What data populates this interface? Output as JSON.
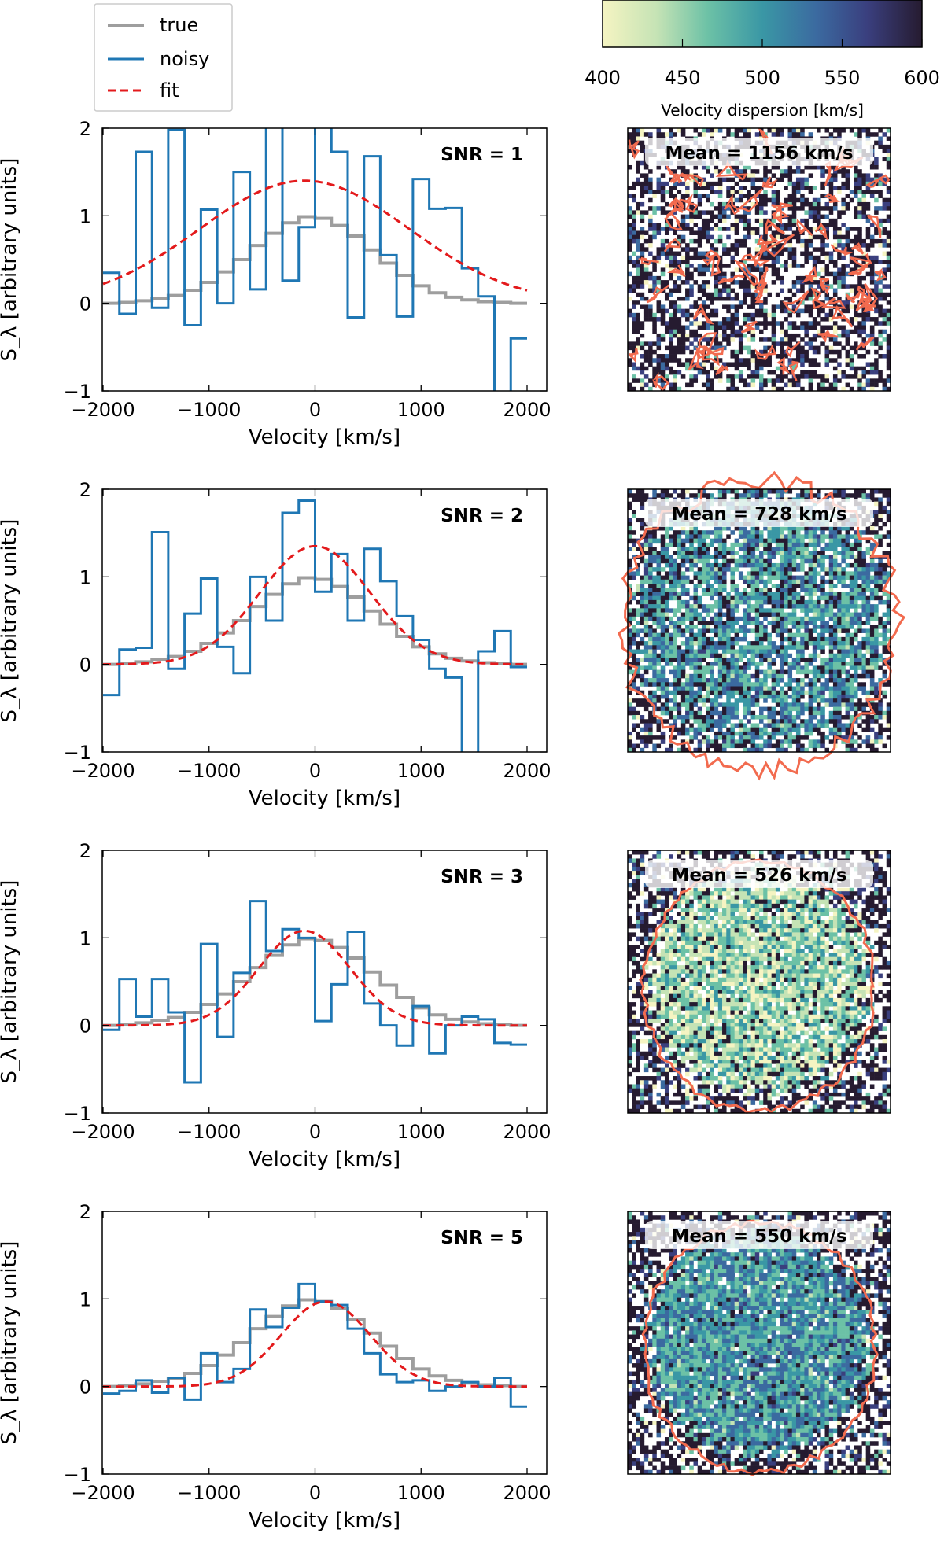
{
  "legend": {
    "entries": [
      {
        "label": "true",
        "color": "#9e9e9e",
        "style": "solid"
      },
      {
        "label": "noisy",
        "color": "#1f77b4",
        "style": "solid"
      },
      {
        "label": "fit",
        "color": "#e31a1c",
        "style": "dashed"
      }
    ]
  },
  "colorbar": {
    "label": "Velocity dispersion [km/s]",
    "ticks": [
      "400",
      "450",
      "500",
      "550",
      "600"
    ],
    "range": [
      400,
      600
    ],
    "colors": [
      "#f5f4c2",
      "#c5e3b5",
      "#6cc1a6",
      "#3a97a5",
      "#3b6aa0",
      "#3a3f7e",
      "#261b30"
    ]
  },
  "chart_data": [
    {
      "type": "line",
      "snr_label": "SNR = 1",
      "xlabel": "Velocity [km/s]",
      "ylabel": "S_λ [arbitrary units]",
      "xlim": [
        -2000,
        2000
      ],
      "ylim": [
        -1,
        2
      ],
      "xticks": [
        "−2000",
        "−1000",
        "0",
        "1000",
        "2000"
      ],
      "yticks": [
        "−1",
        "0",
        "1",
        "2"
      ],
      "bin_edges": [
        -2000,
        -1846,
        -1692,
        -1538,
        -1385,
        -1231,
        -1077,
        -923,
        -769,
        -615,
        -462,
        -308,
        -154,
        0,
        154,
        308,
        462,
        615,
        769,
        923,
        1077,
        1231,
        1385,
        1538,
        1692,
        1846,
        2000
      ],
      "series": [
        {
          "name": "true",
          "values": [
            0.0,
            0.01,
            0.03,
            0.06,
            0.09,
            0.15,
            0.24,
            0.36,
            0.5,
            0.66,
            0.8,
            0.92,
            0.99,
            0.97,
            0.89,
            0.77,
            0.61,
            0.46,
            0.32,
            0.2,
            0.12,
            0.07,
            0.04,
            0.02,
            0.01,
            0.0
          ]
        },
        {
          "name": "noisy",
          "values": [
            0.35,
            -0.12,
            1.73,
            -0.05,
            1.98,
            -0.25,
            1.07,
            0.0,
            1.5,
            0.16,
            2.1,
            0.26,
            0.87,
            2.1,
            1.73,
            -0.16,
            1.68,
            0.55,
            -0.15,
            1.42,
            1.08,
            1.09,
            0.4,
            0.08,
            -1.2,
            -0.4
          ]
        },
        {
          "name": "fit",
          "model": "gaussian",
          "amplitude": 1.4,
          "center": -100,
          "sigma": 990,
          "offset": 0
        }
      ]
    },
    {
      "type": "line",
      "snr_label": "SNR = 2",
      "xlabel": "Velocity [km/s]",
      "ylabel": "S_λ [arbitrary units]",
      "xlim": [
        -2000,
        2000
      ],
      "ylim": [
        -1,
        2
      ],
      "xticks": [
        "−2000",
        "−1000",
        "0",
        "1000",
        "2000"
      ],
      "yticks": [
        "−1",
        "0",
        "1",
        "2"
      ],
      "bin_edges": [
        -2000,
        -1846,
        -1692,
        -1538,
        -1385,
        -1231,
        -1077,
        -923,
        -769,
        -615,
        -462,
        -308,
        -154,
        0,
        154,
        308,
        462,
        615,
        769,
        923,
        1077,
        1231,
        1385,
        1538,
        1692,
        1846,
        2000
      ],
      "series": [
        {
          "name": "true",
          "values": [
            0.0,
            0.01,
            0.03,
            0.06,
            0.09,
            0.15,
            0.24,
            0.36,
            0.5,
            0.66,
            0.8,
            0.92,
            0.99,
            0.97,
            0.89,
            0.77,
            0.61,
            0.46,
            0.32,
            0.2,
            0.12,
            0.07,
            0.04,
            0.02,
            0.01,
            0.0
          ]
        },
        {
          "name": "noisy",
          "values": [
            -0.35,
            0.17,
            0.19,
            1.51,
            -0.05,
            0.58,
            0.98,
            0.2,
            -0.1,
            1.0,
            0.5,
            1.73,
            1.87,
            0.83,
            1.26,
            0.5,
            1.32,
            0.95,
            0.55,
            0.28,
            -0.05,
            -0.15,
            -1.05,
            0.15,
            0.38,
            -0.03
          ]
        },
        {
          "name": "fit",
          "model": "gaussian",
          "amplitude": 1.35,
          "center": 0,
          "sigma": 520,
          "offset": 0
        }
      ]
    },
    {
      "type": "line",
      "snr_label": "SNR = 3",
      "xlabel": "Velocity [km/s]",
      "ylabel": "S_λ [arbitrary units]",
      "xlim": [
        -2000,
        2000
      ],
      "ylim": [
        -1,
        2
      ],
      "xticks": [
        "−2000",
        "−1000",
        "0",
        "1000",
        "2000"
      ],
      "yticks": [
        "−1",
        "0",
        "1",
        "2"
      ],
      "bin_edges": [
        -2000,
        -1846,
        -1692,
        -1538,
        -1385,
        -1231,
        -1077,
        -923,
        -769,
        -615,
        -462,
        -308,
        -154,
        0,
        154,
        308,
        462,
        615,
        769,
        923,
        1077,
        1231,
        1385,
        1538,
        1692,
        1846,
        2000
      ],
      "series": [
        {
          "name": "true",
          "values": [
            0.0,
            0.01,
            0.03,
            0.06,
            0.09,
            0.15,
            0.24,
            0.36,
            0.5,
            0.66,
            0.8,
            0.92,
            0.99,
            0.97,
            0.89,
            0.77,
            0.61,
            0.46,
            0.32,
            0.2,
            0.12,
            0.07,
            0.04,
            0.02,
            0.01,
            0.0
          ]
        },
        {
          "name": "noisy",
          "values": [
            -0.05,
            0.53,
            0.1,
            0.53,
            0.15,
            -0.65,
            0.93,
            -0.13,
            0.6,
            1.42,
            0.85,
            1.1,
            1.0,
            0.05,
            0.47,
            1.07,
            0.25,
            0.0,
            -0.23,
            0.22,
            -0.32,
            0.0,
            0.1,
            0.07,
            -0.2,
            -0.22
          ]
        },
        {
          "name": "fit",
          "model": "gaussian",
          "amplitude": 1.08,
          "center": -100,
          "sigma": 430,
          "offset": 0
        }
      ]
    },
    {
      "type": "line",
      "snr_label": "SNR = 5",
      "xlabel": "Velocity [km/s]",
      "ylabel": "S_λ [arbitrary units]",
      "xlim": [
        -2000,
        2000
      ],
      "ylim": [
        -1,
        2
      ],
      "xticks": [
        "−2000",
        "−1000",
        "0",
        "1000",
        "2000"
      ],
      "yticks": [
        "−1",
        "0",
        "1",
        "2"
      ],
      "bin_edges": [
        -2000,
        -1846,
        -1692,
        -1538,
        -1385,
        -1231,
        -1077,
        -923,
        -769,
        -615,
        -462,
        -308,
        -154,
        0,
        154,
        308,
        462,
        615,
        769,
        923,
        1077,
        1231,
        1385,
        1538,
        1692,
        1846,
        2000
      ],
      "series": [
        {
          "name": "true",
          "values": [
            0.0,
            0.01,
            0.03,
            0.06,
            0.09,
            0.15,
            0.24,
            0.36,
            0.5,
            0.66,
            0.8,
            0.92,
            0.99,
            0.97,
            0.89,
            0.77,
            0.61,
            0.46,
            0.32,
            0.2,
            0.12,
            0.07,
            0.04,
            0.02,
            0.01,
            0.0
          ]
        },
        {
          "name": "noisy",
          "values": [
            -0.08,
            -0.05,
            0.07,
            -0.07,
            0.1,
            -0.15,
            0.38,
            0.05,
            0.2,
            0.88,
            0.68,
            0.9,
            1.17,
            0.97,
            0.93,
            0.66,
            0.38,
            0.14,
            0.05,
            0.07,
            -0.05,
            0.0,
            0.05,
            0.0,
            0.1,
            -0.23
          ]
        },
        {
          "name": "fit",
          "model": "gaussian",
          "amplitude": 0.97,
          "center": 100,
          "sigma": 420,
          "offset": 0
        }
      ]
    }
  ],
  "maps": [
    {
      "mean_label": "Mean = 1156 km/s",
      "noise_level": 1.0,
      "contour_radius_fraction": 0.0
    },
    {
      "mean_label": "Mean = 728 km/s",
      "noise_level": 0.65,
      "contour_radius_fraction": 0.52
    },
    {
      "mean_label": "Mean = 526 km/s",
      "noise_level": 0.35,
      "contour_radius_fraction": 0.44
    },
    {
      "mean_label": "Mean = 550 km/s",
      "noise_level": 0.2,
      "contour_radius_fraction": 0.44
    }
  ]
}
